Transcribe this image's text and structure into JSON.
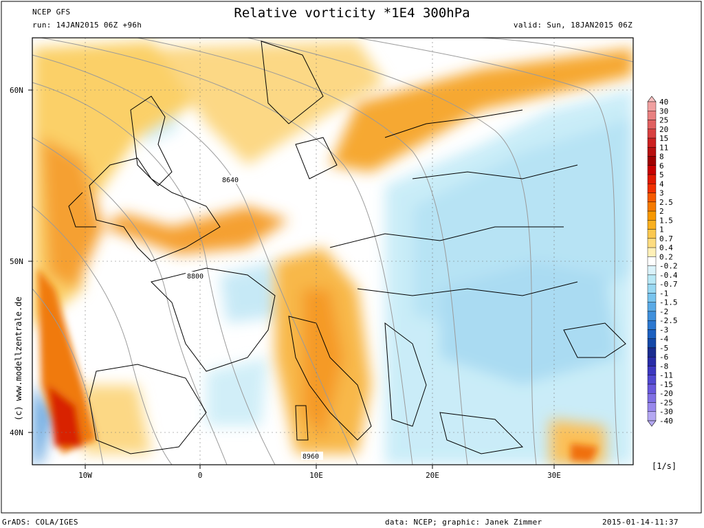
{
  "header": {
    "model": "NCEP GFS",
    "title": "Relative vorticity *1E4 300hPa",
    "run": "run: 14JAN2015 06Z +96h",
    "valid": "valid: Sun, 18JAN2015 06Z"
  },
  "map": {
    "lat_labels": [
      "60N",
      "50N",
      "40N"
    ],
    "lon_labels": [
      "10W",
      "0",
      "10E",
      "20E",
      "30E"
    ],
    "contour_labels": [
      "8640",
      "8800",
      "8960"
    ],
    "credit": "(c) www.modellzentrale.de"
  },
  "legend": {
    "unit": "[1/s]",
    "levels": [
      "40",
      "30",
      "25",
      "20",
      "15",
      "11",
      "8",
      "6",
      "5",
      "4",
      "3",
      "2.5",
      "2",
      "1.5",
      "1",
      "0.7",
      "0.4",
      "0.2",
      "-0.2",
      "-0.4",
      "-0.7",
      "-1",
      "-1.5",
      "-2",
      "-2.5",
      "-3",
      "-4",
      "-5",
      "-6",
      "-8",
      "-11",
      "-15",
      "-20",
      "-25",
      "-30",
      "-40"
    ],
    "colors": [
      "#f7c0c0",
      "#f0a0a0",
      "#e88080",
      "#e06060",
      "#d84040",
      "#cc2020",
      "#b81010",
      "#a00000",
      "#c80000",
      "#e01a00",
      "#f03000",
      "#f55a00",
      "#f57a00",
      "#f79800",
      "#f9b020",
      "#fbc850",
      "#fddc80",
      "#fff0b8",
      "#ffffff",
      "#daf2fa",
      "#b8e8f6",
      "#98d8f2",
      "#78c4ee",
      "#5aaae6",
      "#4090dc",
      "#2c78d0",
      "#1c60c0",
      "#1448a8",
      "#1a2c90",
      "#282ca8",
      "#3c38c0",
      "#5048d0",
      "#6858dc",
      "#8070e4",
      "#9888ec",
      "#b4a8f2"
    ]
  },
  "footer": {
    "left": "GrADS: COLA/IGES",
    "mid": "data: NCEP; graphic: Janek Zimmer",
    "right": "2015-01-14-11:37"
  }
}
